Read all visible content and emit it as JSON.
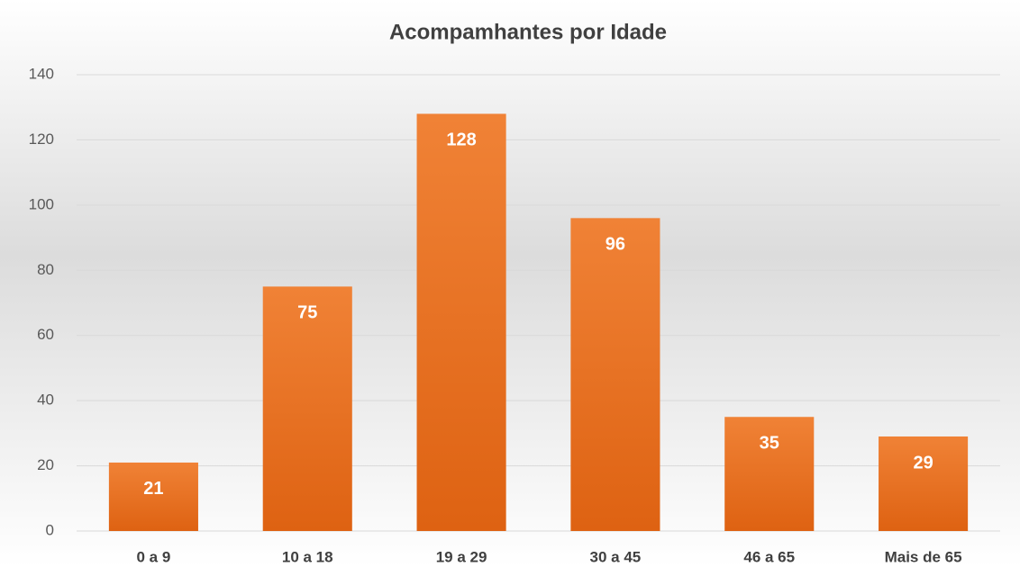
{
  "chart_data": {
    "type": "bar",
    "title": "Acompamhantes por Idade",
    "categories": [
      "0 a 9",
      "10 a 18",
      "19 a 29",
      "30 a 45",
      "46 a 65",
      "Mais de 65"
    ],
    "values": [
      21,
      75,
      128,
      96,
      35,
      29
    ],
    "color": "#ED7D31",
    "ylim": [
      0,
      140
    ],
    "yticks": [
      0,
      20,
      40,
      60,
      80,
      100,
      120,
      140
    ],
    "grid": true
  }
}
